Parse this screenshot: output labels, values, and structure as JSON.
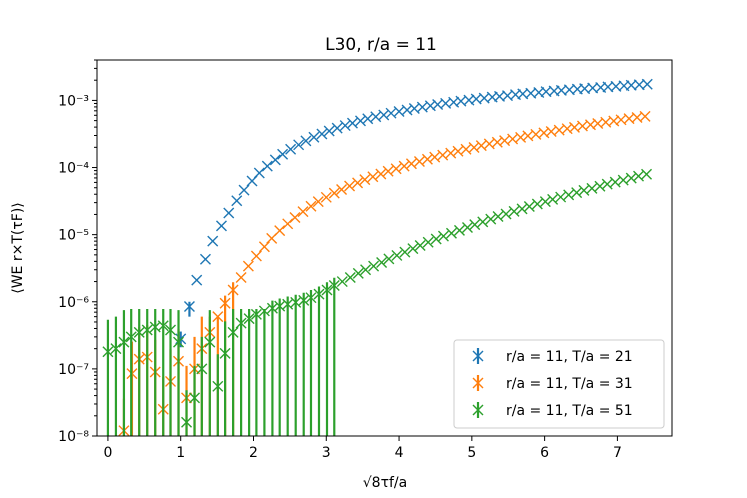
{
  "chart_data": {
    "type": "scatter",
    "title": "L30, r/a = 11",
    "xlabel": "√8τf/a",
    "ylabel": "⟨WE r×T(τF)⟩",
    "xlim": [
      -0.15,
      7.75
    ],
    "ylim": [
      1e-08,
      0.004
    ],
    "yscale": "log",
    "x_ticks": [
      0,
      1,
      2,
      3,
      4,
      5,
      6,
      7
    ],
    "x_tick_labels": [
      "0",
      "1",
      "2",
      "3",
      "4",
      "5",
      "6",
      "7"
    ],
    "y_ticks": [
      1e-08,
      1e-07,
      1e-06,
      1e-05,
      0.0001,
      0.001
    ],
    "y_tick_labels": [
      "10⁻⁸",
      "10⁻⁷",
      "10⁻⁶",
      "10⁻⁵",
      "10⁻⁴",
      "10⁻³"
    ],
    "grid": false,
    "legend_position": "lower-right",
    "series": [
      {
        "name": "r/a = 11, T/a = 21",
        "color": "#1f77b4",
        "x": [
          1.0,
          1.12,
          1.22,
          1.34,
          1.44,
          1.56,
          1.66,
          1.77,
          1.87,
          1.98,
          2.08,
          2.19,
          2.3,
          2.4,
          2.51,
          2.62,
          2.72,
          2.83,
          2.94,
          3.04,
          3.15,
          3.26,
          3.36,
          3.47,
          3.57,
          3.68,
          3.79,
          3.89,
          4.0,
          4.11,
          4.21,
          4.32,
          4.43,
          4.53,
          4.64,
          4.75,
          4.85,
          4.96,
          5.06,
          5.17,
          5.28,
          5.38,
          5.49,
          5.6,
          5.7,
          5.81,
          5.92,
          6.02,
          6.13,
          6.23,
          6.34,
          6.45,
          6.55,
          6.66,
          6.77,
          6.87,
          6.98,
          7.09,
          7.19,
          7.3,
          7.41
        ],
        "y": [
          2.8e-07,
          8.5e-07,
          2.1e-06,
          4.3e-06,
          8e-06,
          1.35e-05,
          2.1e-05,
          3.2e-05,
          4.6e-05,
          6.3e-05,
          8.3e-05,
          0.000105,
          0.00013,
          0.000158,
          0.000187,
          0.000218,
          0.00025,
          0.000282,
          0.000316,
          0.00035,
          0.000386,
          0.000422,
          0.000458,
          0.000495,
          0.000532,
          0.00057,
          0.000607,
          0.000645,
          0.000683,
          0.00072,
          0.000757,
          0.000795,
          0.000832,
          0.000868,
          0.000905,
          0.00094,
          0.000976,
          0.00101,
          0.00105,
          0.00108,
          0.00112,
          0.00115,
          0.00118,
          0.00122,
          0.00125,
          0.00128,
          0.00131,
          0.00135,
          0.00138,
          0.00141,
          0.00144,
          0.00147,
          0.0015,
          0.00153,
          0.00156,
          0.00159,
          0.00162,
          0.00165,
          0.00168,
          0.00171,
          0.00174
        ],
        "yerr_low": [
          2.1e-07,
          6e-07,
          null,
          null,
          null,
          null,
          null,
          null,
          null,
          null,
          null,
          null,
          null,
          null,
          null,
          null,
          null,
          null,
          null,
          null,
          null,
          null,
          null,
          null,
          null,
          null,
          null,
          null,
          null,
          null,
          null,
          null,
          null,
          null,
          null,
          null,
          null,
          null,
          null,
          null,
          null,
          null,
          null,
          null,
          null,
          null,
          null,
          null,
          null,
          null,
          null,
          null,
          null,
          null,
          null,
          null,
          null,
          null,
          null,
          null,
          null
        ],
        "yerr_high": [
          3.6e-07,
          1e-06,
          null,
          null,
          null,
          null,
          null,
          null,
          null,
          null,
          null,
          null,
          null,
          null,
          null,
          null,
          null,
          null,
          null,
          null,
          null,
          null,
          null,
          null,
          null,
          null,
          null,
          null,
          null,
          null,
          null,
          null,
          null,
          null,
          null,
          null,
          null,
          null,
          null,
          null,
          null,
          null,
          null,
          null,
          null,
          null,
          null,
          null,
          null,
          null,
          null,
          null,
          null,
          null,
          null,
          null,
          null,
          null,
          null,
          null,
          null
        ]
      },
      {
        "name": "r/a = 11, T/a = 31",
        "color": "#ff7f0e",
        "x": [
          0.22,
          0.33,
          0.43,
          0.54,
          0.65,
          0.76,
          0.86,
          0.97,
          1.08,
          1.19,
          1.29,
          1.4,
          1.51,
          1.61,
          1.72,
          1.83,
          1.93,
          2.04,
          2.15,
          2.25,
          2.36,
          2.47,
          2.57,
          2.68,
          2.79,
          2.89,
          3.0,
          3.11,
          3.21,
          3.32,
          3.43,
          3.53,
          3.64,
          3.75,
          3.85,
          3.96,
          4.07,
          4.17,
          4.28,
          4.39,
          4.49,
          4.6,
          4.71,
          4.81,
          4.92,
          5.03,
          5.13,
          5.24,
          5.35,
          5.45,
          5.56,
          5.67,
          5.77,
          5.88,
          5.99,
          6.09,
          6.2,
          6.31,
          6.41,
          6.52,
          6.63,
          6.73,
          6.84,
          6.95,
          7.05,
          7.16,
          7.27,
          7.38
        ],
        "y": [
          1.2e-08,
          8.5e-08,
          1.4e-07,
          1.5e-07,
          9e-08,
          2.5e-08,
          6.5e-08,
          1.3e-07,
          3.7e-08,
          1e-07,
          2e-07,
          3.5e-07,
          6e-07,
          9.5e-07,
          1.5e-06,
          2.3e-06,
          3.4e-06,
          4.8e-06,
          6.6e-06,
          8.8e-06,
          1.15e-05,
          1.45e-05,
          1.8e-05,
          2.2e-05,
          2.65e-05,
          3.1e-05,
          3.6e-05,
          4.15e-05,
          4.7e-05,
          5.3e-05,
          5.9e-05,
          6.6e-05,
          7.3e-05,
          8e-05,
          8.8e-05,
          9.6e-05,
          0.000105,
          0.000114,
          0.000123,
          0.000133,
          0.000143,
          0.000153,
          0.000164,
          0.000175,
          0.000187,
          0.000199,
          0.000212,
          0.000225,
          0.000238,
          0.000252,
          0.000266,
          0.000281,
          0.000296,
          0.000312,
          0.000328,
          0.000344,
          0.000361,
          0.000379,
          0.000397,
          0.000415,
          0.000434,
          0.000453,
          0.000473,
          0.000493,
          0.000514,
          0.000535,
          0.000557,
          0.000579
        ]
      },
      {
        "name": "r/a = 11, T/a = 51",
        "color": "#2ca02c",
        "x": [
          0.0,
          0.11,
          0.22,
          0.32,
          0.43,
          0.54,
          0.65,
          0.76,
          0.86,
          0.97,
          1.08,
          1.19,
          1.29,
          1.4,
          1.51,
          1.61,
          1.72,
          1.83,
          1.94,
          2.04,
          2.15,
          2.26,
          2.36,
          2.47,
          2.58,
          2.69,
          2.79,
          2.9,
          3.01,
          3.11,
          3.22,
          3.33,
          3.44,
          3.54,
          3.65,
          3.76,
          3.86,
          3.97,
          4.08,
          4.19,
          4.29,
          4.4,
          4.51,
          4.61,
          4.72,
          4.83,
          4.94,
          5.04,
          5.15,
          5.26,
          5.36,
          5.47,
          5.58,
          5.69,
          5.79,
          5.9,
          6.01,
          6.11,
          6.22,
          6.33,
          6.44,
          6.54,
          6.65,
          6.76,
          6.86,
          6.97,
          7.08,
          7.19,
          7.29,
          7.4
        ],
        "y": [
          1.8e-07,
          2e-07,
          2.5e-07,
          3e-07,
          3.5e-07,
          3.8e-07,
          4.2e-07,
          4.4e-07,
          3.8e-07,
          2.5e-07,
          1.6e-08,
          3.7e-08,
          1e-07,
          2.5e-07,
          5.5e-08,
          1.7e-07,
          3.5e-07,
          4.8e-07,
          5.6e-07,
          6.5e-07,
          7.3e-07,
          8e-07,
          8.6e-07,
          9.2e-07,
          9.8e-07,
          1.05e-06,
          1.15e-06,
          1.3e-06,
          1.5e-06,
          1.75e-06,
          2e-06,
          2.3e-06,
          2.65e-06,
          3e-06,
          3.4e-06,
          3.85e-06,
          4.35e-06,
          4.9e-06,
          5.5e-06,
          6.2e-06,
          6.9e-06,
          7.7e-06,
          8.6e-06,
          9.5e-06,
          1.05e-05,
          1.16e-05,
          1.28e-05,
          1.41e-05,
          1.55e-05,
          1.7e-05,
          1.86e-05,
          2.03e-05,
          2.22e-05,
          2.42e-05,
          2.63e-05,
          2.86e-05,
          3.1e-05,
          3.36e-05,
          3.63e-05,
          3.92e-05,
          4.23e-05,
          4.56e-05,
          4.9e-05,
          5.27e-05,
          5.66e-05,
          6.07e-05,
          6.5e-05,
          6.96e-05,
          7.44e-05,
          7.95e-05
        ]
      }
    ]
  }
}
